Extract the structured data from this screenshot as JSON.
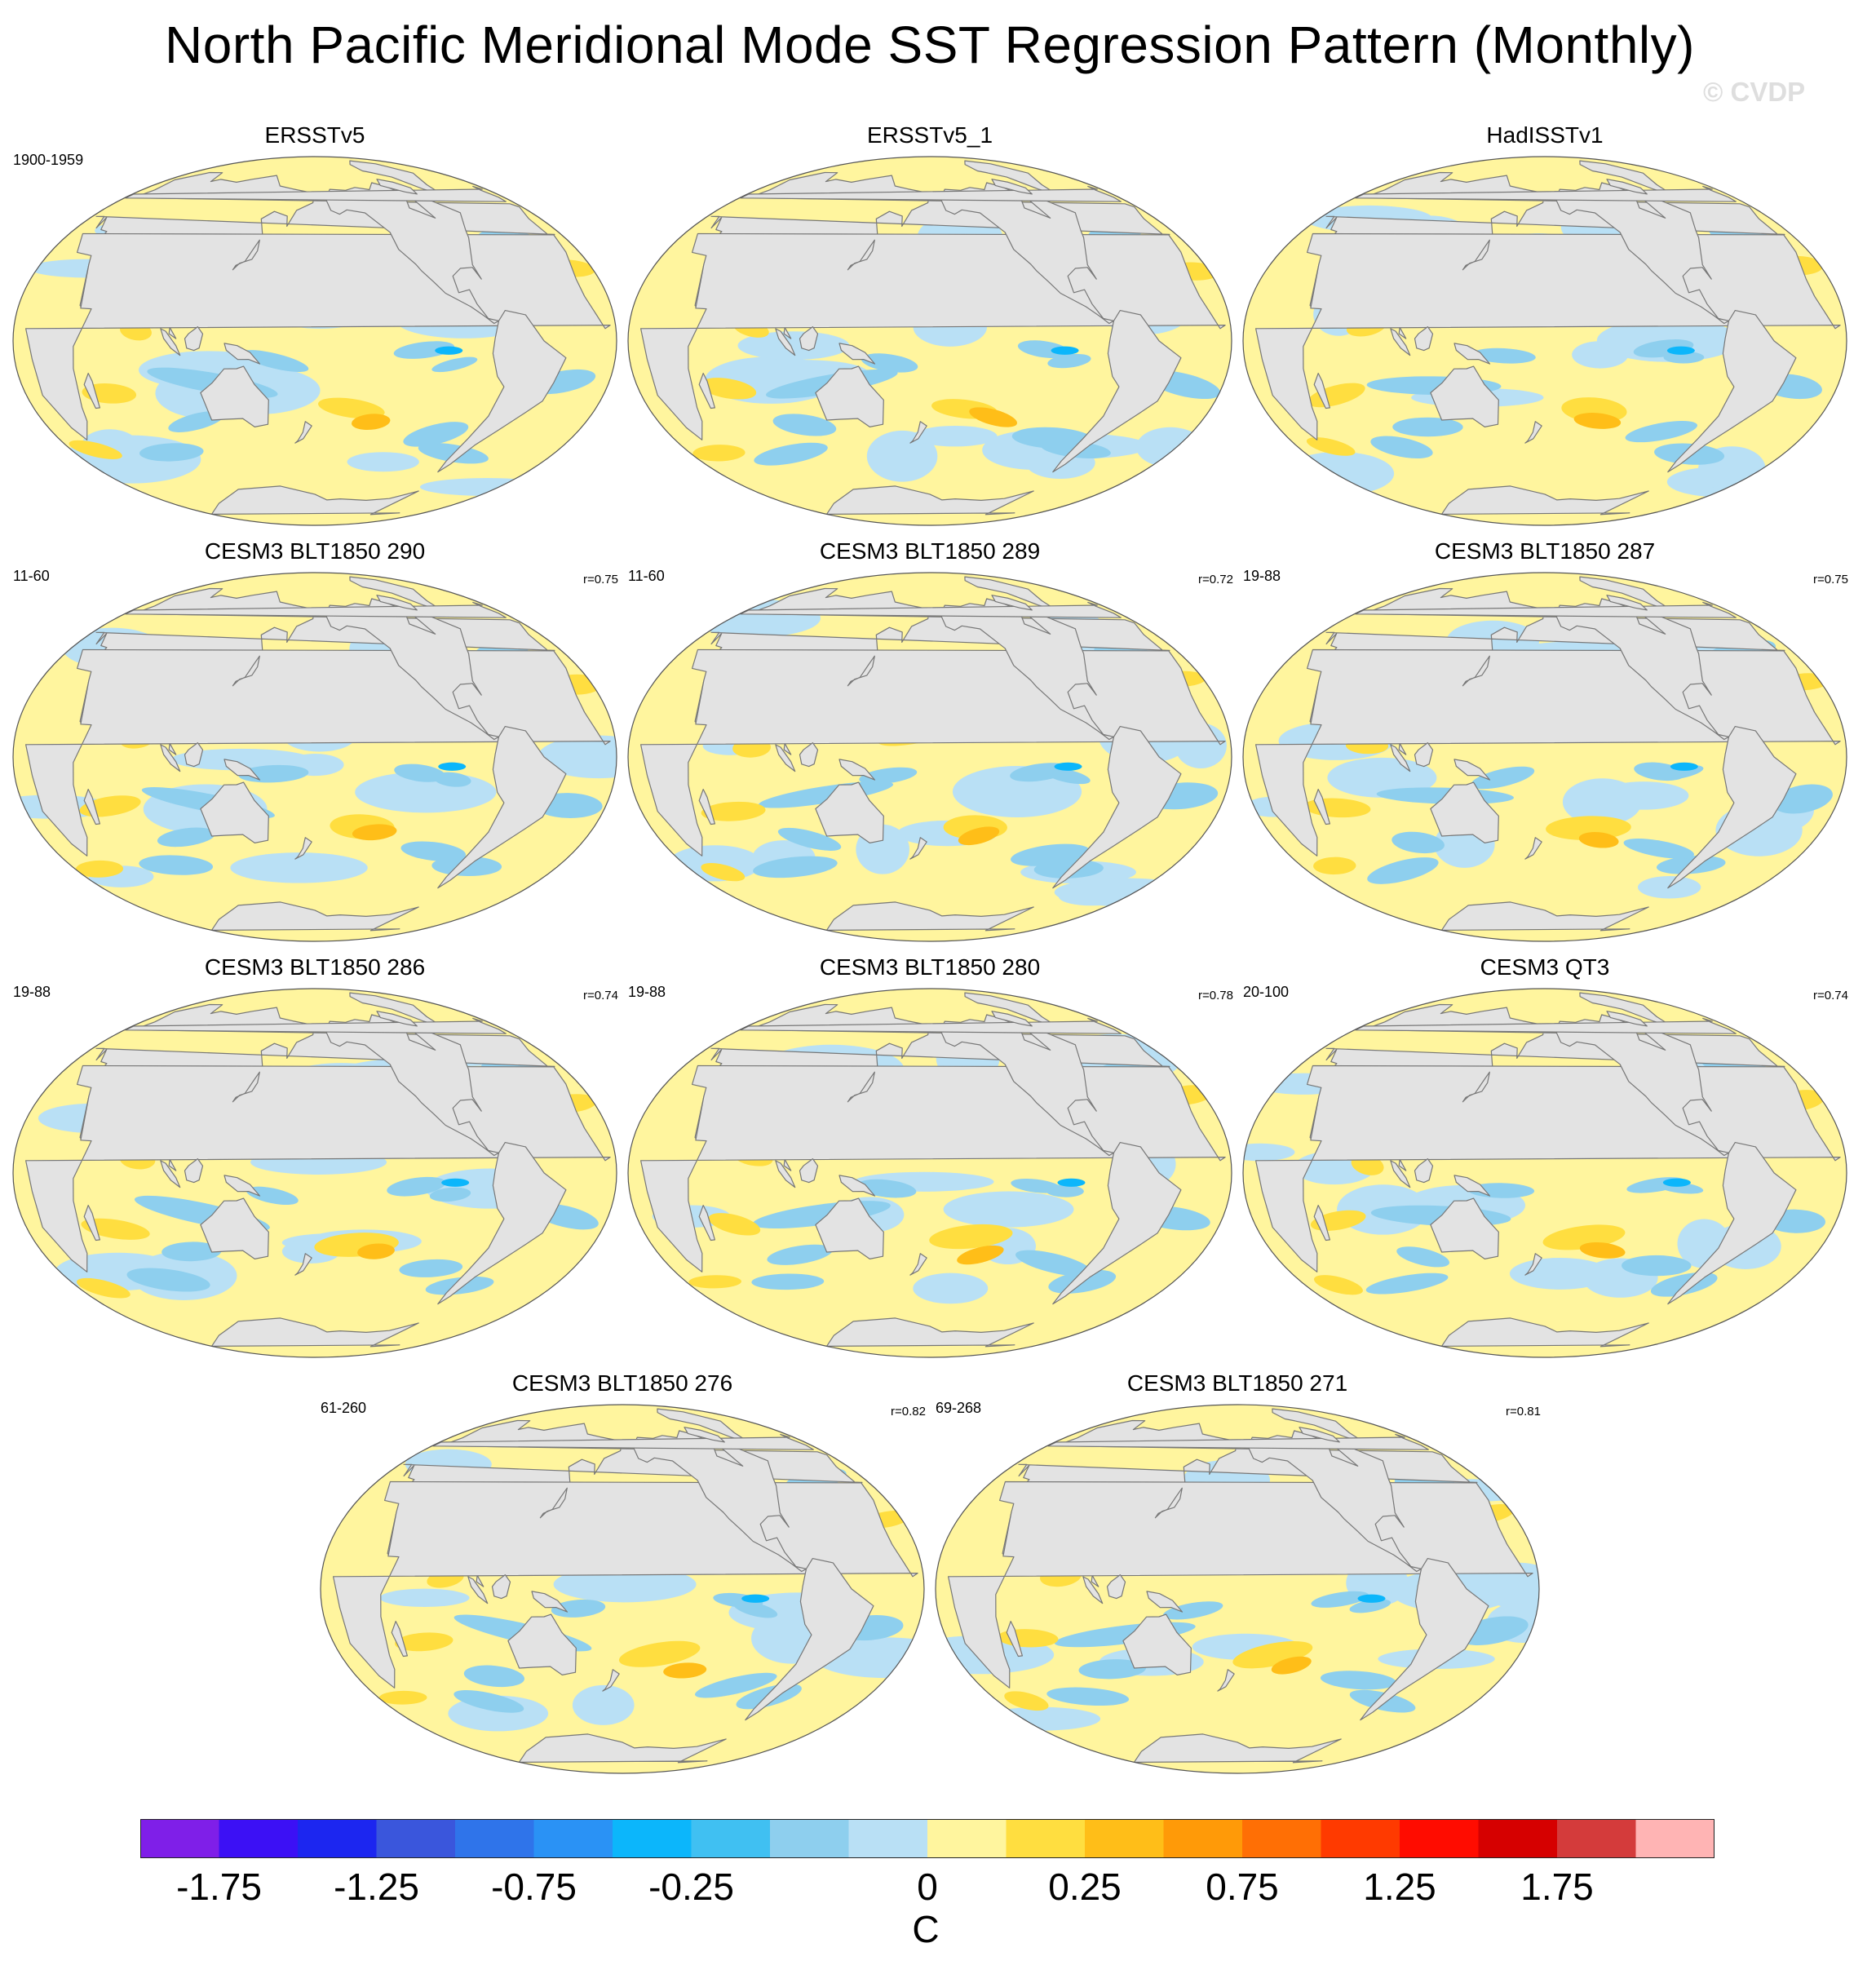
{
  "title": "North Pacific Meridional Mode SST Regression Pattern (Monthly)",
  "watermark": "© CVDP",
  "panels": [
    {
      "title": "ERSSTv5",
      "period": "1900-1959",
      "corr": "",
      "variant": 0
    },
    {
      "title": "ERSSTv5_1",
      "period": "",
      "corr": "",
      "variant": 1
    },
    {
      "title": "HadISSTv1",
      "period": "",
      "corr": "",
      "variant": 2
    },
    {
      "title": "CESM3 BLT1850 290",
      "period": "11-60",
      "corr": "r=0.75",
      "variant": 3
    },
    {
      "title": "CESM3 BLT1850 289",
      "period": "11-60",
      "corr": "r=0.72",
      "variant": 4
    },
    {
      "title": "CESM3 BLT1850 287",
      "period": "19-88",
      "corr": "r=0.75",
      "variant": 5
    },
    {
      "title": "CESM3 BLT1850 286",
      "period": "19-88",
      "corr": "r=0.74",
      "variant": 6
    },
    {
      "title": "CESM3 BLT1850 280",
      "period": "19-88",
      "corr": "r=0.78",
      "variant": 7
    },
    {
      "title": "CESM3 QT3",
      "period": "20-100",
      "corr": "r=0.74",
      "variant": 8
    },
    {
      "title": "CESM3 BLT1850 276",
      "period": "61-260",
      "corr": "r=0.82",
      "variant": 9
    },
    {
      "title": "CESM3 BLT1850 271",
      "period": "69-268",
      "corr": "r=0.81",
      "variant": 10
    }
  ],
  "colorbar": {
    "colors": [
      "#7f1fe8",
      "#3c10f5",
      "#1c26f0",
      "#3a56dc",
      "#2f74ea",
      "#2a92f5",
      "#0cb6fb",
      "#40c0f2",
      "#8ecfee",
      "#b9e0f5",
      "#fff59e",
      "#ffde40",
      "#ffbe18",
      "#ff9a08",
      "#ff6f05",
      "#ff3a00",
      "#ff0c00",
      "#d60000",
      "#d43b3b",
      "#ffb4b4"
    ],
    "labels": [
      "-1.75",
      "-1.25",
      "-0.75",
      "-0.25",
      "0",
      "0.25",
      "0.75",
      "1.25",
      "1.75"
    ],
    "label_boundaries": [
      1,
      3,
      5,
      7,
      10,
      12,
      14,
      16,
      18
    ],
    "units": "C"
  },
  "map_colors": {
    "land": "#e3e3e3",
    "coast": "#777777",
    "neutral_pos": "#fff59e",
    "neutral_neg": "#b9e0f5"
  }
}
